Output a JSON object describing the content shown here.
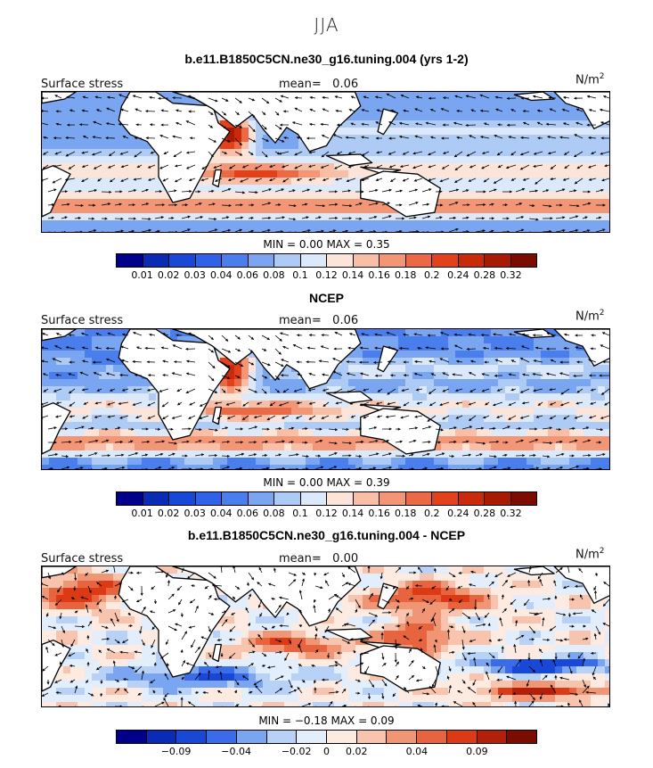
{
  "figure": {
    "season": "JJA"
  },
  "panels": [
    {
      "title": "b.e11.B1850C5CN.ne30_g16.tuning.004 (yrs 1-2)",
      "variable": "Surface stress",
      "mean_label": "mean=",
      "mean_value": "0.06",
      "units_base": "N/m",
      "units_exp": "2",
      "stats": "MIN =   0.00 MAX =   0.35",
      "colorbar_ticks": [
        "0.01",
        "0.02",
        "0.03",
        "0.04",
        "0.06",
        "0.08",
        "0.1",
        "0.12",
        "0.14",
        "0.16",
        "0.18",
        "0.2",
        "0.24",
        "0.28",
        "0.32"
      ]
    },
    {
      "title": "NCEP",
      "variable": "Surface stress",
      "mean_label": "mean=",
      "mean_value": "0.06",
      "units_base": "N/m",
      "units_exp": "2",
      "stats": "MIN =   0.00 MAX =   0.39",
      "colorbar_ticks": [
        "0.01",
        "0.02",
        "0.03",
        "0.04",
        "0.06",
        "0.08",
        "0.1",
        "0.12",
        "0.14",
        "0.16",
        "0.18",
        "0.2",
        "0.24",
        "0.28",
        "0.32"
      ]
    },
    {
      "title": "b.e11.B1850C5CN.ne30_g16.tuning.004 - NCEP",
      "variable": "Surface stress",
      "mean_label": "mean=",
      "mean_value": "0.00",
      "units_base": "N/m",
      "units_exp": "2",
      "stats": "MIN = −0.18 MAX =   0.09",
      "colorbar_ticks": [
        "−0.09",
        "−0.04",
        "−0.02",
        "0",
        "0.02",
        "0.04",
        "0.09"
      ]
    }
  ],
  "colors": {
    "seq": [
      "#00008b",
      "#0a2bb5",
      "#1a48d6",
      "#2f62e6",
      "#4a7eec",
      "#7aa5f0",
      "#aecbf5",
      "#dbe9fb",
      "#fde4d8",
      "#f9bfa6",
      "#f29676",
      "#eb6a45",
      "#e2411c",
      "#c82a0a",
      "#a91a04",
      "#7d0c00"
    ],
    "diff": [
      "#00008b",
      "#0a2bb5",
      "#1a48d6",
      "#3a6be8",
      "#7aa5f0",
      "#b8d1f6",
      "#e3eefc",
      "#fdebe1",
      "#f8c4ad",
      "#f09674",
      "#e8643f",
      "#dc3a14",
      "#b3200a",
      "#7d0c00"
    ],
    "land": "#ffffff",
    "coast": "#000000"
  }
}
